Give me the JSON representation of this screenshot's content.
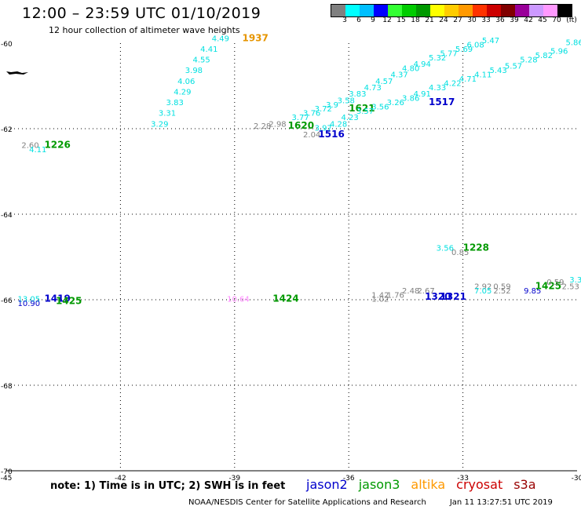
{
  "title": "12:00 – 23:59 UTC 01/10/2019",
  "subtitle": "12 hour collection of altimeter wave heights",
  "colorbar": {
    "colors": [
      "#808080",
      "#00ffff",
      "#00bfff",
      "#0000ff",
      "#33ff33",
      "#00cc00",
      "#009900",
      "#ffff00",
      "#ffcc00",
      "#ff9900",
      "#ff3300",
      "#cc0000",
      "#800000",
      "#990099",
      "#cc99ff",
      "#ff99ff",
      "#000000"
    ],
    "labels": [
      "3",
      "6",
      "9",
      "12",
      "15",
      "18",
      "21",
      "24",
      "27",
      "30",
      "33",
      "36",
      "39",
      "42",
      "45",
      "70"
    ],
    "unit": "(ft)"
  },
  "map": {
    "lon_labels": [
      "-45",
      "-42",
      "-39",
      "-36",
      "-33",
      "-30"
    ],
    "lat_labels": [
      "-60",
      "-62",
      "-64",
      "-66",
      "-68",
      "-70"
    ]
  },
  "observations": [
    {
      "text": "4.49",
      "lon": -39.6,
      "lat": -59.95,
      "color": "#00e0e0"
    },
    {
      "text": "4.41",
      "lon": -39.9,
      "lat": -60.2,
      "color": "#00e0e0"
    },
    {
      "text": "4.55",
      "lon": -40.1,
      "lat": -60.45,
      "color": "#00e0e0"
    },
    {
      "text": "3.98",
      "lon": -40.3,
      "lat": -60.7,
      "color": "#00e0e0"
    },
    {
      "text": "4.06",
      "lon": -40.5,
      "lat": -60.95,
      "color": "#00e0e0"
    },
    {
      "text": "4.29",
      "lon": -40.6,
      "lat": -61.2,
      "color": "#00e0e0"
    },
    {
      "text": "3.83",
      "lon": -40.8,
      "lat": -61.45,
      "color": "#00e0e0"
    },
    {
      "text": "3.31",
      "lon": -41.0,
      "lat": -61.7,
      "color": "#00e0e0"
    },
    {
      "text": "3.29",
      "lon": -41.2,
      "lat": -61.95,
      "color": "#00e0e0"
    },
    {
      "text": "1937",
      "lon": -38.8,
      "lat": -59.95,
      "color": "#e69500",
      "bold": true
    },
    {
      "text": "2.60",
      "lon": -44.6,
      "lat": -62.45,
      "color": "#808080"
    },
    {
      "text": "4.11",
      "lon": -44.4,
      "lat": -62.55,
      "color": "#00e0e0"
    },
    {
      "text": "1226",
      "lon": -44.0,
      "lat": -62.45,
      "color": "#009900",
      "bold": true
    },
    {
      "text": "2.28",
      "lon": -38.5,
      "lat": -62.0,
      "color": "#808080"
    },
    {
      "text": "2.98",
      "lon": -38.1,
      "lat": -61.95,
      "color": "#808080"
    },
    {
      "text": "1620",
      "lon": -37.6,
      "lat": -62.0,
      "color": "#009900",
      "bold": true
    },
    {
      "text": "3.77",
      "lon": -37.5,
      "lat": -61.8,
      "color": "#00e0e0"
    },
    {
      "text": "3.76",
      "lon": -37.2,
      "lat": -61.7,
      "color": "#00e0e0"
    },
    {
      "text": "3.72",
      "lon": -36.9,
      "lat": -61.6,
      "color": "#00e0e0"
    },
    {
      "text": "3.9",
      "lon": -36.6,
      "lat": -61.5,
      "color": "#00e0e0"
    },
    {
      "text": "3.58",
      "lon": -36.3,
      "lat": -61.4,
      "color": "#00e0e0"
    },
    {
      "text": "1621",
      "lon": -36.0,
      "lat": -61.6,
      "color": "#009900",
      "bold": true
    },
    {
      "text": "2.04",
      "lon": -37.2,
      "lat": -62.2,
      "color": "#808080"
    },
    {
      "text": "1516",
      "lon": -36.8,
      "lat": -62.2,
      "color": "#0000cc",
      "bold": true
    },
    {
      "text": "3.97",
      "lon": -36.9,
      "lat": -62.05,
      "color": "#00e0e0"
    },
    {
      "text": "4.28",
      "lon": -36.5,
      "lat": -61.95,
      "color": "#00e0e0"
    },
    {
      "text": "4.23",
      "lon": -36.2,
      "lat": -61.8,
      "color": "#00e0e0"
    },
    {
      "text": "3.57",
      "lon": -35.8,
      "lat": -61.65,
      "color": "#00e0e0"
    },
    {
      "text": "3.56",
      "lon": -35.4,
      "lat": -61.55,
      "color": "#00e0e0"
    },
    {
      "text": "3.26",
      "lon": -35.0,
      "lat": -61.45,
      "color": "#00e0e0"
    },
    {
      "text": "3.83",
      "lon": -36.0,
      "lat": -61.25,
      "color": "#00e0e0"
    },
    {
      "text": "4.73",
      "lon": -35.6,
      "lat": -61.1,
      "color": "#00e0e0"
    },
    {
      "text": "4.57",
      "lon": -35.3,
      "lat": -60.95,
      "color": "#00e0e0"
    },
    {
      "text": "4.37",
      "lon": -34.9,
      "lat": -60.8,
      "color": "#00e0e0"
    },
    {
      "text": "4.80",
      "lon": -34.6,
      "lat": -60.65,
      "color": "#00e0e0"
    },
    {
      "text": "4.94",
      "lon": -34.3,
      "lat": -60.55,
      "color": "#00e0e0"
    },
    {
      "text": "5.32",
      "lon": -33.9,
      "lat": -60.4,
      "color": "#00e0e0"
    },
    {
      "text": "5.77",
      "lon": -33.6,
      "lat": -60.3,
      "color": "#00e0e0"
    },
    {
      "text": "5.69",
      "lon": -33.2,
      "lat": -60.2,
      "color": "#00e0e0"
    },
    {
      "text": "6.08",
      "lon": -32.9,
      "lat": -60.1,
      "color": "#00e0e0"
    },
    {
      "text": "5.47",
      "lon": -32.5,
      "lat": -60.0,
      "color": "#00e0e0"
    },
    {
      "text": "3.86",
      "lon": -34.6,
      "lat": -61.35,
      "color": "#00e0e0"
    },
    {
      "text": "1517",
      "lon": -33.9,
      "lat": -61.45,
      "color": "#0000cc",
      "bold": true
    },
    {
      "text": "4.91",
      "lon": -34.3,
      "lat": -61.25,
      "color": "#00e0e0"
    },
    {
      "text": "4.33",
      "lon": -33.9,
      "lat": -61.1,
      "color": "#00e0e0"
    },
    {
      "text": "4.22",
      "lon": -33.5,
      "lat": -61.0,
      "color": "#00e0e0"
    },
    {
      "text": "4.71",
      "lon": -33.1,
      "lat": -60.9,
      "color": "#00e0e0"
    },
    {
      "text": "4.11",
      "lon": -32.7,
      "lat": -60.8,
      "color": "#00e0e0"
    },
    {
      "text": "5.43",
      "lon": -32.3,
      "lat": -60.7,
      "color": "#00e0e0"
    },
    {
      "text": "5.57",
      "lon": -31.9,
      "lat": -60.6,
      "color": "#00e0e0"
    },
    {
      "text": "5.28",
      "lon": -31.5,
      "lat": -60.45,
      "color": "#00e0e0"
    },
    {
      "text": "5.82",
      "lon": -31.1,
      "lat": -60.35,
      "color": "#00e0e0"
    },
    {
      "text": "5.96",
      "lon": -30.7,
      "lat": -60.25,
      "color": "#00e0e0"
    },
    {
      "text": "5.86",
      "lon": -30.3,
      "lat": -60.05,
      "color": "#00e0e0"
    },
    {
      "text": "3.56",
      "lon": -33.7,
      "lat": -64.85,
      "color": "#00e0e0"
    },
    {
      "text": "0.85",
      "lon": -33.3,
      "lat": -64.95,
      "color": "#808080"
    },
    {
      "text": "1228",
      "lon": -33.0,
      "lat": -64.85,
      "color": "#009900",
      "bold": true
    },
    {
      "text": "13.05",
      "lon": -44.7,
      "lat": -66.05,
      "color": "#00e0e0"
    },
    {
      "text": "10.90",
      "lon": -44.7,
      "lat": -66.15,
      "color": "#0000cc"
    },
    {
      "text": "1419",
      "lon": -44.0,
      "lat": -66.05,
      "color": "#0000cc",
      "bold": true
    },
    {
      "text": "1425",
      "lon": -43.7,
      "lat": -66.1,
      "color": "#009900",
      "bold": true
    },
    {
      "text": "10.64",
      "lon": -39.2,
      "lat": -66.05,
      "color": "#ff88ff"
    },
    {
      "text": "1424",
      "lon": -38.0,
      "lat": -66.05,
      "color": "#009900",
      "bold": true
    },
    {
      "text": "1.42",
      "lon": -35.4,
      "lat": -65.95,
      "color": "#808080"
    },
    {
      "text": "1.02",
      "lon": -35.4,
      "lat": -66.05,
      "color": "#808080"
    },
    {
      "text": "1.76",
      "lon": -35.0,
      "lat": -65.95,
      "color": "#808080"
    },
    {
      "text": "2.48",
      "lon": -34.6,
      "lat": -65.85,
      "color": "#808080"
    },
    {
      "text": "2.67",
      "lon": -34.2,
      "lat": -65.85,
      "color": "#808080"
    },
    {
      "text": "1320",
      "lon": -34.0,
      "lat": -66.0,
      "color": "#0000cc",
      "bold": true
    },
    {
      "text": "1321",
      "lon": -33.6,
      "lat": -66.0,
      "color": "#0000cc",
      "bold": true
    },
    {
      "text": "2.92",
      "lon": -32.7,
      "lat": -65.75,
      "color": "#808080"
    },
    {
      "text": "7.05",
      "lon": -32.7,
      "lat": -65.85,
      "color": "#00e0e0"
    },
    {
      "text": "0.59",
      "lon": -32.2,
      "lat": -65.75,
      "color": "#808080"
    },
    {
      "text": "2.52",
      "lon": -32.2,
      "lat": -65.85,
      "color": "#808080"
    },
    {
      "text": "9.85",
      "lon": -31.4,
      "lat": -65.85,
      "color": "#0000cc"
    },
    {
      "text": "1425",
      "lon": -31.1,
      "lat": -65.75,
      "color": "#009900",
      "bold": true
    },
    {
      "text": "2.53",
      "lon": -30.4,
      "lat": -65.75,
      "color": "#808080"
    },
    {
      "text": "3.3",
      "lon": -30.2,
      "lat": -65.6,
      "color": "#00e0e0"
    },
    {
      "text": "0.59",
      "lon": -30.8,
      "lat": -65.65,
      "color": "#808080"
    }
  ],
  "note": "note:  1) Time is in UTC;  2) SWH is in feet",
  "satellites": [
    {
      "name": "jason2",
      "color": "#0000cc"
    },
    {
      "name": "jason3",
      "color": "#009900"
    },
    {
      "name": "altika",
      "color": "#ff9900"
    },
    {
      "name": "cryosat",
      "color": "#cc0000"
    },
    {
      "name": "s3a",
      "color": "#990000"
    }
  ],
  "footer": {
    "credit": "NOAA/NESDIS Center for Satellite Applications and Research",
    "timestamp": "Jan 11 13:27:51 UTC 2019"
  }
}
